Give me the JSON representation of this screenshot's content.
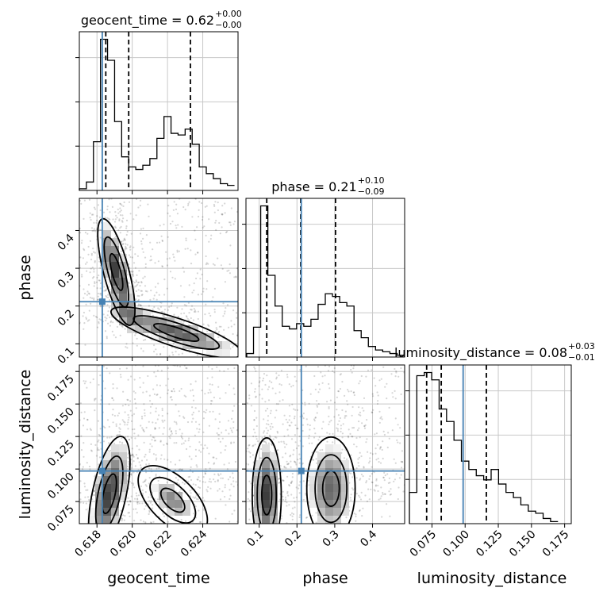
{
  "chart_data": {
    "type": "corner",
    "parameters": [
      "geocent_time",
      "phase",
      "luminosity_distance"
    ],
    "truth_color": "#4682b4",
    "truths": {
      "geocent_time": 0.6183,
      "phase": 0.2115,
      "luminosity_distance": 0.0985
    },
    "titles": [
      {
        "param": "geocent_time",
        "label": "geocent_time = 0.62",
        "sup": "+0.00",
        "sub": "−0.00"
      },
      {
        "param": "phase",
        "label": "phase = 0.21",
        "sup": "+0.10",
        "sub": "−0.09"
      },
      {
        "param": "luminosity_distance",
        "label": "luminosity_distance = 0.08",
        "sup": "+0.03",
        "sub": "−0.01"
      }
    ],
    "axis_labels": {
      "x": [
        "geocent_time",
        "phase",
        "luminosity_distance"
      ],
      "y": [
        "phase",
        "luminosity_distance"
      ]
    },
    "ranges": {
      "geocent_time": [
        0.617,
        0.626
      ],
      "phase": [
        0.065,
        0.485
      ],
      "luminosity_distance": [
        0.058,
        0.18
      ]
    },
    "ticks": {
      "geocent_time": [
        "0.618",
        "0.620",
        "0.622",
        "0.624"
      ],
      "phase": [
        "0.1",
        "0.2",
        "0.3",
        "0.4"
      ],
      "luminosity_distance": [
        "0.075",
        "0.100",
        "0.125",
        "0.150",
        "0.175"
      ]
    },
    "quantiles": {
      "geocent_time": [
        0.6185,
        0.6198,
        0.6233
      ],
      "phase": [
        0.12,
        0.21,
        0.302
      ],
      "luminosity_distance": [
        0.071,
        0.082,
        0.116
      ]
    },
    "histograms": {
      "geocent_time": {
        "edges": [
          0.617,
          0.6174,
          0.6178,
          0.6182,
          0.6186,
          0.619,
          0.6194,
          0.6198,
          0.6202,
          0.6206,
          0.621,
          0.6214,
          0.6218,
          0.6222,
          0.6226,
          0.623,
          0.6234,
          0.6238,
          0.6242,
          0.6246,
          0.625,
          0.6254,
          0.6258
        ],
        "counts": [
          2,
          10,
          58,
          180,
          155,
          82,
          40,
          28,
          25,
          30,
          38,
          62,
          88,
          68,
          66,
          73,
          55,
          28,
          20,
          14,
          8,
          6
        ]
      },
      "phase": {
        "edges": [
          0.067,
          0.085,
          0.104,
          0.123,
          0.142,
          0.161,
          0.18,
          0.199,
          0.218,
          0.237,
          0.256,
          0.275,
          0.294,
          0.313,
          0.332,
          0.351,
          0.37,
          0.389,
          0.408,
          0.427,
          0.446,
          0.465,
          0.484
        ],
        "counts": [
          4,
          34,
          172,
          93,
          58,
          35,
          32,
          38,
          35,
          43,
          60,
          72,
          69,
          62,
          58,
          30,
          22,
          12,
          8,
          6,
          4,
          2
        ]
      },
      "luminosity_distance": {
        "edges": [
          0.058,
          0.0636,
          0.0692,
          0.0748,
          0.0804,
          0.086,
          0.0916,
          0.0972,
          0.1028,
          0.1084,
          0.114,
          0.1196,
          0.1252,
          0.1308,
          0.1364,
          0.142,
          0.1476,
          0.1532,
          0.1588,
          0.1644,
          0.17
        ],
        "counts": [
          30,
          142,
          145,
          138,
          110,
          98,
          80,
          60,
          52,
          46,
          42,
          52,
          38,
          30,
          25,
          18,
          12,
          10,
          5,
          2
        ]
      }
    },
    "density_lobes": {
      "geocent_time-phase": [
        {
          "center": [
            0.6191,
            0.29
          ],
          "axis": [
            -0.0009,
            0.16
          ],
          "width": 0.00045,
          "weight": 1
        },
        {
          "center": [
            0.6225,
            0.13
          ],
          "axis": [
            0.0042,
            -0.065
          ],
          "width": 0.0005,
          "weight": 0.9
        }
      ],
      "geocent_time-luminosity_distance": [
        {
          "center": [
            0.6187,
            0.081
          ],
          "axis": [
            0.0008,
            0.05
          ],
          "width": 0.0006,
          "weight": 1
        },
        {
          "center": [
            0.6223,
            0.076
          ],
          "axis": [
            0.0028,
            0.0
          ],
          "width": 0.0008,
          "weight": 0.75
        }
      ],
      "phase-luminosity_distance": [
        {
          "center": [
            0.12,
            0.08
          ],
          "axis": [
            0.0,
            0.05
          ],
          "width": 0.024,
          "weight": 1
        },
        {
          "center": [
            0.29,
            0.085
          ],
          "axis": [
            0.0,
            0.045
          ],
          "width": 0.04,
          "weight": 0.85
        }
      ]
    }
  }
}
